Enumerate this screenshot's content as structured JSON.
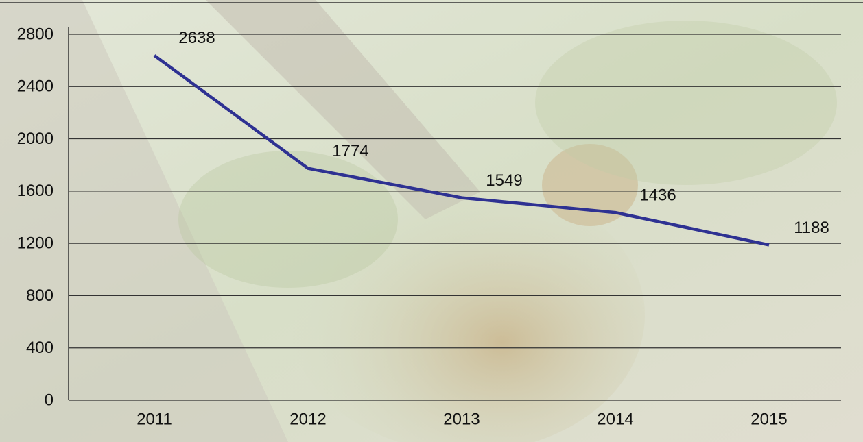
{
  "chart_data": {
    "type": "line",
    "categories": [
      "2011",
      "2012",
      "2013",
      "2014",
      "2015"
    ],
    "values": [
      2638,
      1774,
      1549,
      1436,
      1188
    ],
    "color": "#2e3192",
    "ylim": [
      0,
      2800
    ],
    "yticks": [
      0,
      400,
      800,
      1200,
      1600,
      2000,
      2400,
      2800
    ],
    "grid": true,
    "data_labels": true
  }
}
